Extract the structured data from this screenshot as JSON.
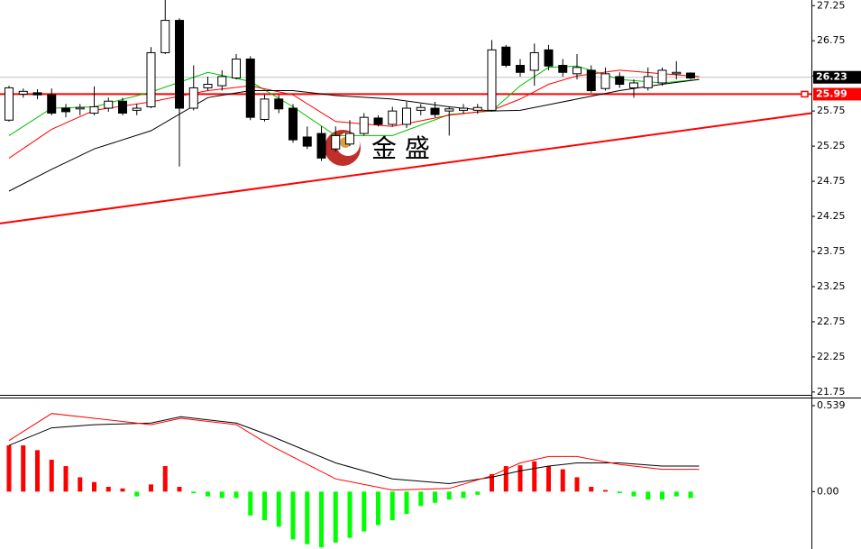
{
  "chart_data": [
    {
      "type": "candlestick",
      "watermark": "金 盛",
      "ylim": [
        21.71,
        27.33
      ],
      "yticks": [
        27.25,
        26.75,
        26.25,
        25.75,
        25.25,
        24.75,
        24.25,
        23.75,
        23.25,
        22.75,
        22.25,
        21.75
      ],
      "up_color": "#ffffff",
      "down_color": "#000000",
      "edge_color": "#000000",
      "open": [
        25.62,
        25.99,
        26.01,
        25.98,
        25.79,
        25.78,
        25.72,
        25.79,
        25.89,
        25.76,
        25.81,
        26.58,
        27.04,
        25.79,
        26.08,
        26.11,
        26.22,
        26.49,
        25.63,
        25.92,
        25.79,
        25.38,
        25.43,
        25.21,
        25.28,
        25.43,
        25.65,
        25.56,
        25.56,
        25.76,
        25.79,
        25.75,
        25.76,
        25.76,
        25.76,
        26.66,
        26.4,
        26.33,
        26.62,
        26.4,
        26.28,
        26.33,
        26.07,
        26.24,
        26.08,
        26.08,
        26.15,
        26.28,
        26.29
      ],
      "high": [
        26.11,
        26.07,
        26.06,
        26.07,
        25.85,
        25.85,
        26.1,
        25.94,
        25.94,
        25.85,
        26.66,
        27.33,
        27.07,
        26.4,
        26.24,
        26.33,
        26.56,
        26.53,
        25.98,
        25.98,
        25.85,
        25.53,
        25.53,
        25.53,
        25.62,
        25.72,
        25.69,
        25.81,
        25.88,
        25.85,
        25.88,
        25.81,
        25.85,
        25.85,
        26.76,
        26.69,
        26.49,
        26.71,
        26.69,
        26.49,
        26.56,
        26.4,
        26.37,
        26.3,
        26.2,
        26.37,
        26.37,
        26.46,
        26.3
      ],
      "low": [
        25.6,
        25.94,
        25.92,
        25.69,
        25.66,
        25.69,
        25.69,
        25.74,
        25.69,
        25.69,
        25.79,
        26.56,
        24.96,
        25.76,
        26.04,
        26.04,
        26.2,
        25.62,
        25.6,
        25.72,
        25.3,
        25.21,
        25.04,
        25.17,
        25.25,
        25.4,
        25.53,
        25.53,
        25.51,
        25.69,
        25.66,
        25.4,
        25.71,
        25.71,
        25.74,
        26.37,
        26.24,
        26.11,
        26.33,
        26.24,
        26.2,
        26.01,
        26.04,
        26.08,
        25.94,
        26.04,
        26.11,
        26.2,
        26.2
      ],
      "close": [
        26.08,
        26.03,
        25.98,
        25.72,
        25.74,
        25.8,
        25.81,
        25.89,
        25.72,
        25.79,
        26.58,
        27.04,
        25.79,
        26.08,
        26.13,
        26.24,
        26.49,
        25.66,
        25.92,
        25.78,
        25.34,
        25.25,
        25.08,
        25.4,
        25.43,
        25.66,
        25.56,
        25.75,
        25.79,
        25.8,
        25.7,
        25.78,
        25.79,
        25.8,
        26.62,
        26.4,
        26.3,
        26.58,
        26.39,
        26.3,
        26.37,
        26.04,
        26.28,
        26.13,
        26.15,
        26.24,
        26.33,
        26.3,
        26.22
      ],
      "ma_x": [
        0,
        3,
        6,
        10,
        14,
        17,
        20,
        23,
        27,
        31,
        34,
        36,
        38,
        40,
        43,
        46,
        48.6
      ],
      "series": [
        {
          "color": "#00c000",
          "values": [
            25.4,
            25.79,
            25.81,
            26.02,
            26.3,
            26.17,
            25.81,
            25.4,
            25.4,
            25.7,
            25.75,
            26.11,
            26.37,
            26.39,
            26.2,
            26.15,
            26.2
          ]
        },
        {
          "color": "#ff0000",
          "values": [
            25.08,
            25.49,
            25.76,
            25.88,
            26.04,
            26.11,
            25.98,
            25.6,
            25.53,
            25.69,
            25.76,
            25.92,
            26.13,
            26.25,
            26.33,
            26.28,
            26.24
          ]
        },
        {
          "color": "#000000",
          "values": [
            24.61,
            24.92,
            25.21,
            25.47,
            25.94,
            26.04,
            26.04,
            25.97,
            25.92,
            25.81,
            25.75,
            25.76,
            25.84,
            25.92,
            26.04,
            26.13,
            26.2
          ]
        }
      ],
      "trendline": {
        "color": "#ff0000",
        "values": [
          24.15,
          25.72
        ]
      },
      "price_lines": [
        {
          "value": 26.23,
          "label": "26.23",
          "color": "#000000",
          "line_color": "#c0c0c0"
        },
        {
          "value": 25.99,
          "label": "25.99",
          "color": "#ff0000",
          "line_color": "#ff0000"
        }
      ]
    },
    {
      "type": "macd",
      "ylim": [
        -0.36,
        0.59
      ],
      "yticks": [
        0.539,
        {
          "value": 0,
          "label": "0.00"
        }
      ],
      "up_color": "#ff0000",
      "down_color": "#00ff00",
      "values": [
        0.29,
        0.29,
        0.26,
        0.2,
        0.16,
        0.09,
        0.06,
        0.03,
        0.02,
        -0.03,
        0.045,
        0.16,
        0.03,
        -0.01,
        -0.03,
        -0.04,
        -0.04,
        -0.15,
        -0.18,
        -0.22,
        -0.3,
        -0.33,
        -0.35,
        -0.32,
        -0.29,
        -0.25,
        -0.21,
        -0.18,
        -0.14,
        -0.09,
        -0.07,
        -0.05,
        -0.04,
        -0.02,
        0.11,
        0.16,
        0.165,
        0.19,
        0.16,
        0.14,
        0.09,
        0.03,
        0.01,
        -0.01,
        -0.03,
        -0.05,
        -0.05,
        -0.03,
        -0.04
      ],
      "line_x": [
        0,
        3,
        6,
        10,
        12.1,
        16,
        18.4,
        23,
        27,
        31,
        34,
        36,
        38,
        40,
        43,
        46,
        48.6
      ],
      "series": [
        {
          "color": "#000000",
          "values": [
            0.29,
            0.4,
            0.42,
            0.43,
            0.47,
            0.43,
            0.35,
            0.18,
            0.08,
            0.05,
            0.09,
            0.13,
            0.16,
            0.18,
            0.18,
            0.16,
            0.16
          ]
        },
        {
          "color": "#ff0000",
          "values": [
            0.32,
            0.49,
            0.46,
            0.42,
            0.46,
            0.42,
            0.29,
            0.08,
            0.01,
            0.02,
            0.1,
            0.18,
            0.22,
            0.22,
            0.17,
            0.14,
            0.14
          ]
        }
      ]
    }
  ]
}
